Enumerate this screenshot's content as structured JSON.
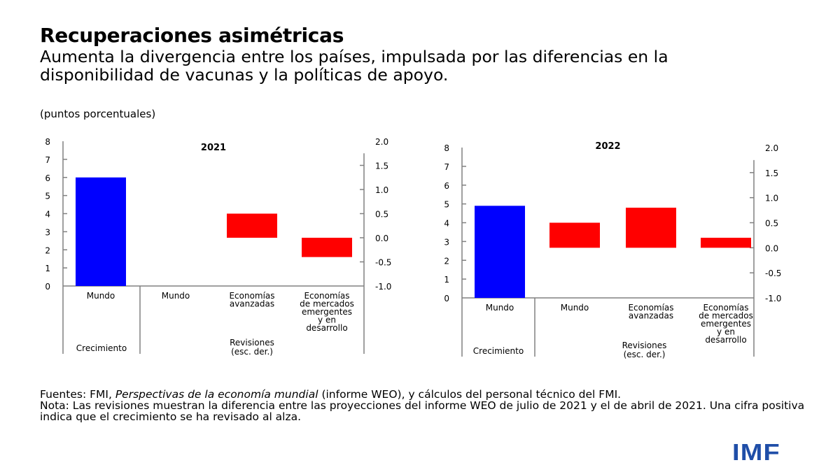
{
  "title": "Recuperaciones asimétricas",
  "subtitle": "Aumenta la divergencia entre los países, impulsada por las diferencias en la disponibilidad de vacunas y la políticas de apoyo.",
  "units": "(puntos porcentuales)",
  "notes": {
    "sources_prefix": "Fuentes: FMI, ",
    "sources_italic": "Perspectivas de la economía mundial",
    "sources_suffix": " (informe WEO), y cálculos del personal técnico del FMI.",
    "note": "Nota: Las revisiones muestran la diferencia entre las proyecciones del informe WEO de julio de 2021 y el de abril de 2021. Una cifra positiva indica que el crecimiento se ha revisado al alza."
  },
  "logo": "IMF",
  "colors": {
    "growth": "#0000ff",
    "revision": "#ff0000",
    "axis": "#808080"
  },
  "chart_data": [
    {
      "type": "bar",
      "title": "2021",
      "categories": [
        "Mundo",
        "Mundo",
        "Economías avanzadas",
        "Economías de mercados emergentes y en desarrollo"
      ],
      "category_lines": [
        [
          "Mundo"
        ],
        [
          "Mundo"
        ],
        [
          "Economías",
          "avanzadas"
        ],
        [
          "Economías",
          "de mercados",
          "emergentes",
          "y en",
          "desarrollo"
        ]
      ],
      "groups": [
        {
          "label": [
            "Crecimiento"
          ],
          "categories": [
            0
          ]
        },
        {
          "label": [
            "Revisiones",
            "(esc. der.)"
          ],
          "categories": [
            1,
            2,
            3
          ]
        }
      ],
      "series": [
        {
          "axis": "left",
          "values": [
            6.0,
            null,
            null,
            null
          ]
        },
        {
          "axis": "right",
          "values": [
            null,
            0.0,
            0.5,
            -0.4
          ]
        }
      ],
      "ylim_left": [
        0,
        8
      ],
      "yticks_left": [
        "0",
        "1",
        "2",
        "3",
        "4",
        "5",
        "6",
        "7",
        "8"
      ],
      "ylim_right": [
        -1.0,
        2.0
      ],
      "yticks_right": [
        "-1.0",
        "-0.5",
        "0.0",
        "0.5",
        "1.0",
        "1.5",
        "2.0"
      ],
      "grid": false
    },
    {
      "type": "bar",
      "title": "2022",
      "categories": [
        "Mundo",
        "Mundo",
        "Economías avanzadas",
        "Economías de mercados emergentes y en desarrollo"
      ],
      "category_lines": [
        [
          "Mundo"
        ],
        [
          "Mundo"
        ],
        [
          "Economías",
          "avanzadas"
        ],
        [
          "Economías",
          "de mercados",
          "emergentes",
          "y en",
          "desarrollo"
        ]
      ],
      "groups": [
        {
          "label": [
            "Crecimiento"
          ],
          "categories": [
            0
          ]
        },
        {
          "label": [
            "Revisiones",
            "(esc. der.)"
          ],
          "categories": [
            1,
            2,
            3
          ]
        }
      ],
      "series": [
        {
          "axis": "left",
          "values": [
            4.9,
            null,
            null,
            null
          ]
        },
        {
          "axis": "right",
          "values": [
            null,
            0.5,
            0.8,
            0.2
          ]
        }
      ],
      "ylim_left": [
        0,
        8
      ],
      "yticks_left": [
        "0",
        "1",
        "2",
        "3",
        "4",
        "5",
        "6",
        "7",
        "8"
      ],
      "ylim_right": [
        -1.0,
        2.0
      ],
      "yticks_right": [
        "-1.0",
        "-0.5",
        "0.0",
        "0.5",
        "1.0",
        "1.5",
        "2.0"
      ],
      "grid": false
    }
  ]
}
